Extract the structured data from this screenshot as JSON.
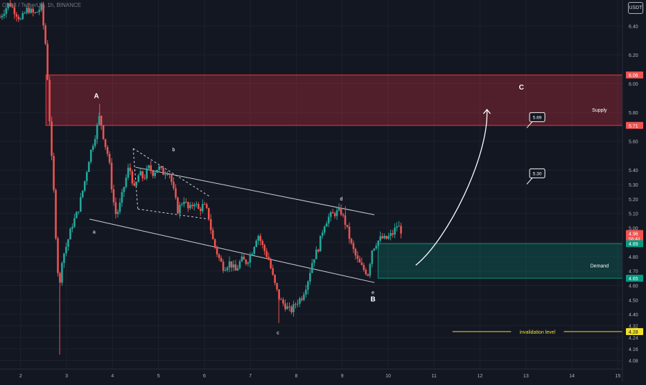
{
  "header": {
    "symbol_line": "OMNI / TetherUS, 1h, BINANCE",
    "currency_button": "USDT"
  },
  "colors": {
    "background": "#131722",
    "up_candle": "#26a69a",
    "down_candle": "#ef5350",
    "supply_zone": "#f23645",
    "demand_zone": "#089981",
    "invalidation_line": "#f0e12c",
    "axis_text": "#b2b5be",
    "annotation": "#ffffff"
  },
  "chart_data": {
    "type": "candlestick",
    "xlabel": "",
    "ylabel": "",
    "x_ticks": [
      "2",
      "3",
      "4",
      "5",
      "6",
      "7",
      "8",
      "9",
      "10",
      "11",
      "12",
      "13",
      "14",
      "15"
    ],
    "y_ticks": [
      4.08,
      4.16,
      4.24,
      4.32,
      4.4,
      4.5,
      4.6,
      4.7,
      4.8,
      4.9,
      5.0,
      5.1,
      5.2,
      5.3,
      5.4,
      5.6,
      5.8,
      6.0,
      6.2,
      6.4
    ],
    "ylim": [
      4.02,
      6.58
    ],
    "xlim": [
      1.55,
      15.1
    ],
    "price_path": [
      [
        1.55,
        6.46
      ],
      [
        1.75,
        6.56
      ],
      [
        2.0,
        6.44
      ],
      [
        2.15,
        6.52
      ],
      [
        2.3,
        6.48
      ],
      [
        2.45,
        6.53
      ],
      [
        2.55,
        6.25
      ],
      [
        2.6,
        5.95
      ],
      [
        2.66,
        5.55
      ],
      [
        2.72,
        5.25
      ],
      [
        2.78,
        4.85
      ],
      [
        2.84,
        4.55
      ],
      [
        2.9,
        4.78
      ],
      [
        3.0,
        4.88
      ],
      [
        3.12,
        5.02
      ],
      [
        3.25,
        5.12
      ],
      [
        3.38,
        5.3
      ],
      [
        3.5,
        5.5
      ],
      [
        3.62,
        5.64
      ],
      [
        3.72,
        5.78
      ],
      [
        3.82,
        5.6
      ],
      [
        3.92,
        5.48
      ],
      [
        4.0,
        5.22
      ],
      [
        4.08,
        5.08
      ],
      [
        4.16,
        5.16
      ],
      [
        4.26,
        5.3
      ],
      [
        4.36,
        5.43
      ],
      [
        4.48,
        5.26
      ],
      [
        4.58,
        5.38
      ],
      [
        4.68,
        5.34
      ],
      [
        4.78,
        5.42
      ],
      [
        4.88,
        5.38
      ],
      [
        5.0,
        5.42
      ],
      [
        5.1,
        5.38
      ],
      [
        5.22,
        5.4
      ],
      [
        5.3,
        5.3
      ],
      [
        5.42,
        5.12
      ],
      [
        5.55,
        5.2
      ],
      [
        5.66,
        5.12
      ],
      [
        5.78,
        5.18
      ],
      [
        5.88,
        5.12
      ],
      [
        5.98,
        5.16
      ],
      [
        6.08,
        5.1
      ],
      [
        6.18,
        4.92
      ],
      [
        6.3,
        4.8
      ],
      [
        6.42,
        4.72
      ],
      [
        6.55,
        4.76
      ],
      [
        6.68,
        4.7
      ],
      [
        6.8,
        4.78
      ],
      [
        6.92,
        4.76
      ],
      [
        7.04,
        4.84
      ],
      [
        7.16,
        4.96
      ],
      [
        7.28,
        4.86
      ],
      [
        7.4,
        4.78
      ],
      [
        7.52,
        4.62
      ],
      [
        7.64,
        4.5
      ],
      [
        7.76,
        4.46
      ],
      [
        7.88,
        4.42
      ],
      [
        8.0,
        4.48
      ],
      [
        8.12,
        4.52
      ],
      [
        8.24,
        4.62
      ],
      [
        8.36,
        4.78
      ],
      [
        8.48,
        4.86
      ],
      [
        8.6,
        5.02
      ],
      [
        8.72,
        5.08
      ],
      [
        8.84,
        5.1
      ],
      [
        8.96,
        5.12
      ],
      [
        9.08,
        5.02
      ],
      [
        9.2,
        4.88
      ],
      [
        9.32,
        4.78
      ],
      [
        9.44,
        4.72
      ],
      [
        9.56,
        4.68
      ],
      [
        9.65,
        4.85
      ],
      [
        9.75,
        4.9
      ],
      [
        9.85,
        4.93
      ],
      [
        9.95,
        4.92
      ],
      [
        10.1,
        4.96
      ],
      [
        10.2,
        5.02
      ],
      [
        10.28,
        4.98
      ]
    ],
    "zones": [
      {
        "name": "Supply",
        "low": 5.71,
        "high": 6.06,
        "x_start": 2.55,
        "x_end": 15.1
      },
      {
        "name": "Demand",
        "low": 4.65,
        "high": 4.89,
        "x_start": 9.78,
        "x_end": 15.1
      }
    ],
    "price_labels": [
      {
        "value": 6.06,
        "text": "6.06",
        "style": "red"
      },
      {
        "value": 5.71,
        "text": "5.71",
        "style": "red"
      },
      {
        "value": 4.96,
        "text": "4.96",
        "style": "red",
        "countdown": "56:40"
      },
      {
        "value": 4.89,
        "text": "4.89",
        "style": "green"
      },
      {
        "value": 4.65,
        "text": "4.65",
        "style": "green"
      },
      {
        "value": 4.28,
        "text": "4.28",
        "style": "yellow"
      }
    ],
    "lines": {
      "channel_upper": [
        [
          4.5,
          5.42
        ],
        [
          9.7,
          5.09
        ]
      ],
      "channel_lower": [
        [
          3.5,
          5.06
        ],
        [
          9.7,
          4.62
        ]
      ],
      "triangle_upper": [
        [
          4.45,
          5.55
        ],
        [
          6.1,
          5.22
        ]
      ],
      "triangle_lower": [
        [
          4.55,
          5.13
        ],
        [
          6.1,
          5.06
        ]
      ],
      "triangle_left": [
        [
          4.45,
          5.55
        ],
        [
          4.55,
          5.13
        ]
      ],
      "invalidation": {
        "value": 4.28,
        "x_start": 11.4,
        "x_end": 15.1,
        "label": "invalidation level"
      },
      "projection_arrow": [
        [
          10.6,
          4.74
        ],
        [
          11.3,
          4.92
        ],
        [
          12.2,
          5.5
        ],
        [
          12.15,
          5.82
        ]
      ]
    },
    "wave_labels": [
      {
        "text": "A",
        "x": 3.65,
        "y": 5.9,
        "size": "large"
      },
      {
        "text": "b",
        "x": 5.33,
        "y": 5.53,
        "size": "small"
      },
      {
        "text": "a",
        "x": 3.6,
        "y": 4.96,
        "size": "small"
      },
      {
        "text": "d",
        "x": 8.98,
        "y": 5.19,
        "size": "small"
      },
      {
        "text": "c",
        "x": 7.6,
        "y": 4.26,
        "size": "small"
      },
      {
        "text": "e",
        "x": 9.67,
        "y": 4.54,
        "size": "small"
      },
      {
        "text": "B",
        "x": 9.67,
        "y": 4.49,
        "size": "large"
      },
      {
        "text": "C",
        "x": 12.9,
        "y": 5.96,
        "size": "large"
      }
    ],
    "zone_labels": [
      {
        "text": "Supply",
        "x": 14.6,
        "y": 5.82
      },
      {
        "text": "Demand",
        "x": 14.6,
        "y": 4.74
      }
    ],
    "target_callouts": [
      {
        "text": "5.69",
        "x": 13.2,
        "y": 5.77
      },
      {
        "text": "5.30",
        "x": 13.2,
        "y": 5.38
      }
    ]
  }
}
